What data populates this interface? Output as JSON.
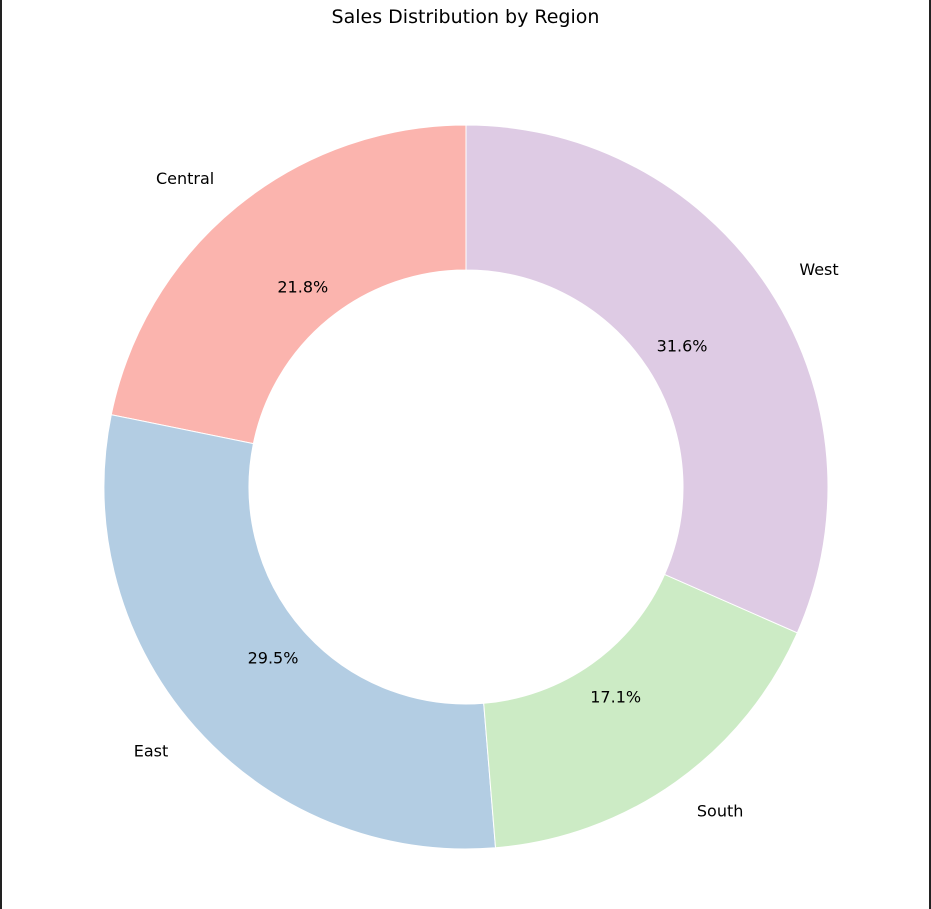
{
  "chart_data": {
    "type": "pie",
    "title": "Sales Distribution by Region",
    "donut": true,
    "start_angle_deg": 90,
    "direction": "counterclockwise",
    "slices": [
      {
        "label": "Central",
        "value": 21.8,
        "pct_label": "21.8%",
        "color": "#fbb4ae"
      },
      {
        "label": "East",
        "value": 29.5,
        "pct_label": "29.5%",
        "color": "#b3cde3"
      },
      {
        "label": "South",
        "value": 17.1,
        "pct_label": "17.1%",
        "color": "#ccebc5"
      },
      {
        "label": "West",
        "value": 31.6,
        "pct_label": "31.6%",
        "color": "#decbe4"
      }
    ]
  }
}
